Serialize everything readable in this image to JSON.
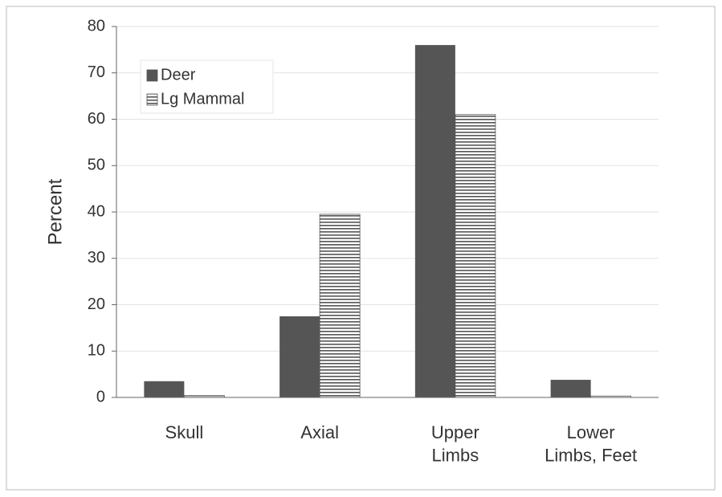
{
  "chart_data": {
    "type": "bar",
    "y_label": "Percent",
    "categories": [
      "Skull",
      "Axial",
      "Upper\nLimbs",
      "Lower\nLimbs, Feet"
    ],
    "series": [
      {
        "name": "Deer",
        "color": "#555555",
        "hatch": "none",
        "values": [
          3.5,
          17.5,
          76,
          3.8
        ]
      },
      {
        "name": "Lg Mammal",
        "color": "#555555",
        "hatch": "horizontal",
        "values": [
          0.4,
          39.5,
          61,
          0.3
        ]
      }
    ],
    "ylim": [
      0,
      80
    ],
    "yticks": [
      0,
      10,
      20,
      30,
      40,
      50,
      60,
      70,
      80
    ],
    "grid": true,
    "legend": "upper left"
  }
}
